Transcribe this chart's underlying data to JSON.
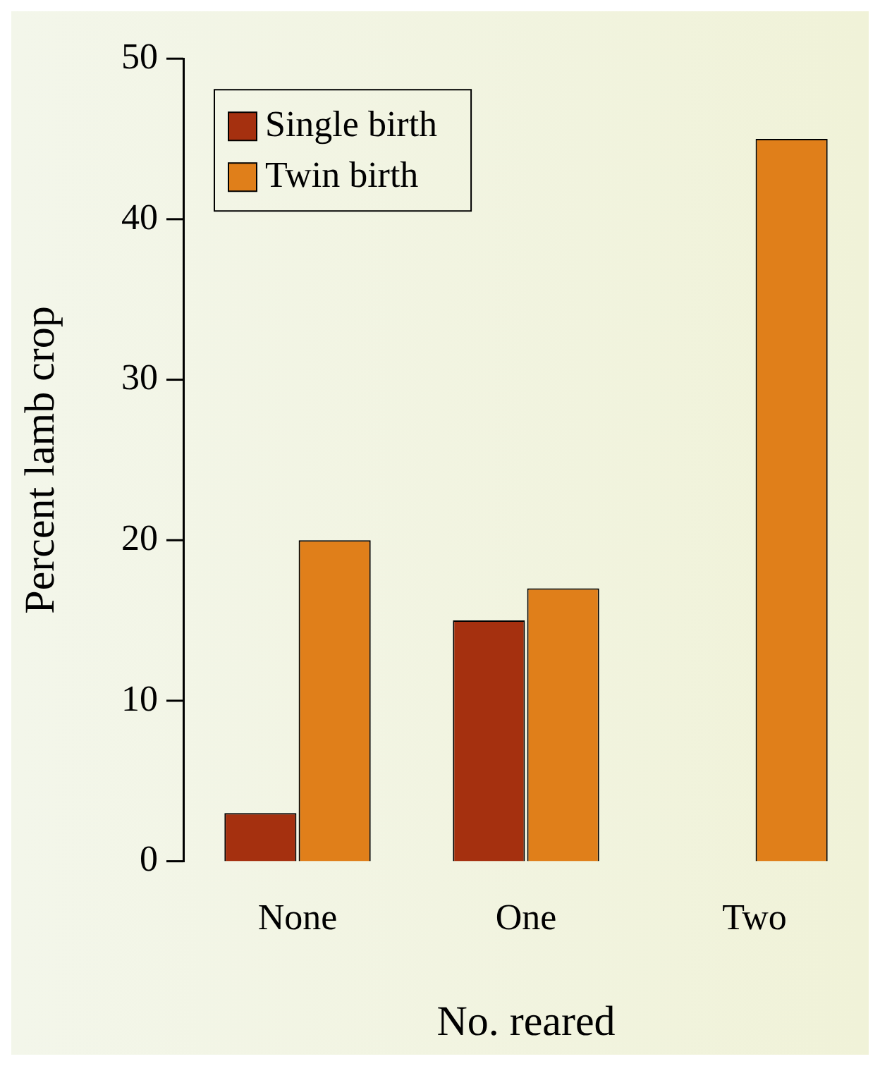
{
  "chart_data": {
    "type": "bar",
    "xlabel": "No. reared",
    "ylabel": "Percent lamb crop",
    "categories": [
      "None",
      "One",
      "Two"
    ],
    "series": [
      {
        "name": "Single birth",
        "color": "#a5300f",
        "values": [
          3,
          15,
          0
        ]
      },
      {
        "name": "Twin birth",
        "color": "#e07f1a",
        "values": [
          20,
          17,
          45
        ]
      }
    ],
    "ylim": [
      0,
      50
    ],
    "yticks": [
      0,
      10,
      20,
      30,
      40,
      50
    ],
    "grid": false,
    "legend": "top left"
  }
}
